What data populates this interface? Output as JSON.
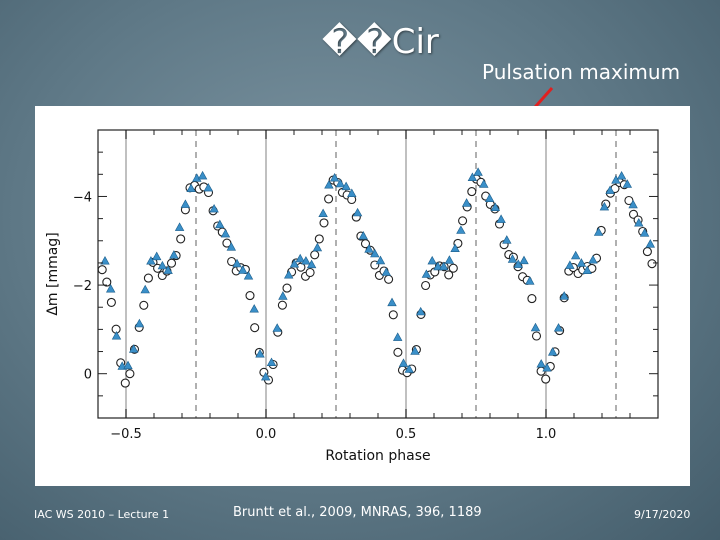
{
  "slide": {
    "title": "��Cir",
    "annotation": "Pulsation maximum",
    "footer_left": "IAC WS 2010 – Lecture 1",
    "footer_center": "Bruntt et al., 2009, MNRAS, 396, 1189",
    "footer_right": "9/17/2020",
    "colors": {
      "arrow": "#e02020",
      "triangle": "#3a8fc8",
      "circle_stroke": "#222222",
      "grid_solid": "#c0c0c0",
      "grid_dashed": "#b0b0b0"
    }
  },
  "chart_data": {
    "type": "scatter",
    "xlabel": "Rotation phase",
    "ylabel": "Δm [mmag]",
    "xlim": [
      -0.6,
      1.4
    ],
    "ylim": [
      1.0,
      -5.5
    ],
    "y_inverted": true,
    "x_ticks": [
      -0.5,
      0.0,
      0.5,
      1.0
    ],
    "x_tick_labels": [
      "−0.5",
      "0.0",
      "0.5",
      "1.0"
    ],
    "y_ticks": [
      -4,
      -2,
      0
    ],
    "y_tick_labels": [
      "−4",
      "−2",
      "0"
    ],
    "vertical_lines_solid": [
      -0.5,
      0.0,
      0.5,
      1.0
    ],
    "vertical_lines_dashed": [
      -0.25,
      0.25,
      0.75,
      1.25
    ],
    "curve_model": {
      "description": "periodic light curve, period 0.5 in phase",
      "key_points_phase_mod_0_5": [
        0.0,
        0.1,
        0.15,
        0.25,
        0.42,
        0.5
      ],
      "key_points_dm": [
        0.1,
        -2.4,
        -2.3,
        -4.3,
        -2.3,
        0.1
      ]
    },
    "series": [
      {
        "name": "",
        "marker": "open-circle",
        "offset": 0.0
      },
      {
        "name": "",
        "marker": "filled-triangle",
        "offset": -0.15
      }
    ],
    "annotation_arrow_target": {
      "x": 0.75,
      "y": -4.4
    }
  }
}
